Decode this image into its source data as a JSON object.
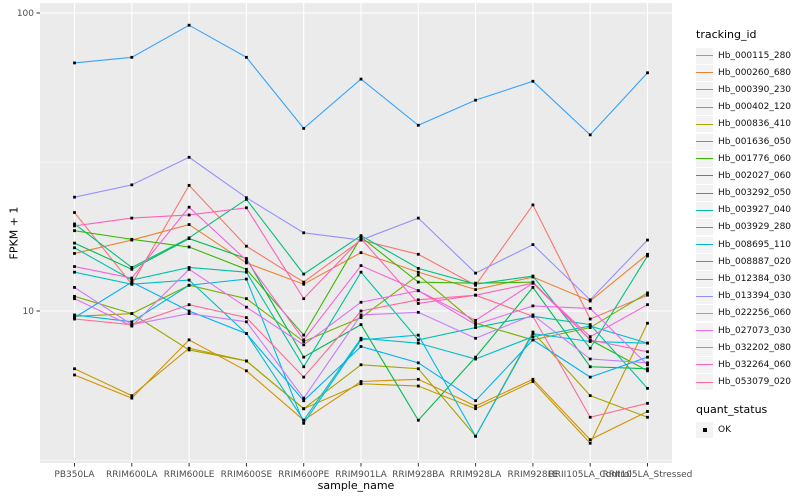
{
  "figure": {
    "background": "#FFFFFF",
    "panel_background": "#EBEBEB",
    "grid_color": "#FFFFFF",
    "tick_color": "#333333",
    "tick_label_color": "#4D4D4D",
    "point_color": "#000000"
  },
  "chart_data": {
    "type": "line",
    "title": "",
    "xlabel": "sample_name",
    "ylabel": "FPKM + 1",
    "y_scale": "log10",
    "y_ticks": [
      100,
      10
    ],
    "y_minor_ticks": [
      31.6,
      3.16
    ],
    "ylim": [
      3.1,
      108
    ],
    "grid": true,
    "legend_position": "right",
    "categories": [
      "PB350LA",
      "RRIM600LA",
      "RRIM600LE",
      "RRIM600SE",
      "RRIM600PE",
      "RRIM901LA",
      "RRIM928BA",
      "RRIM928LA",
      "RRIM928LE",
      "RRII105LA_Control",
      "RRII105LA_Stressed"
    ],
    "legend": {
      "title": "tracking_id"
    },
    "quant_legend": {
      "title": "quant_status",
      "items": [
        {
          "label": "OK",
          "marker": "black-square"
        }
      ]
    },
    "series": [
      {
        "name": "Hb_000115_280",
        "color": "#F8766D",
        "values": [
          21.4,
          12.3,
          26.4,
          16.5,
          12.5,
          17.3,
          15.5,
          12.2,
          22.7,
          9.4,
          11.3
        ]
      },
      {
        "name": "Hb_000260_680",
        "color": "#EA8331",
        "values": [
          15.6,
          17.3,
          19.5,
          14.5,
          12.3,
          15.7,
          13.5,
          11.8,
          13.0,
          10.8,
          15.5
        ]
      },
      {
        "name": "Hb_000390_230",
        "color": "#D89000",
        "values": [
          6.1,
          5.1,
          8.0,
          6.3,
          4.3,
          5.8,
          5.9,
          4.8,
          5.9,
          3.7,
          4.6
        ]
      },
      {
        "name": "Hb_000402_120",
        "color": "#C09B00",
        "values": [
          6.4,
          5.2,
          7.5,
          6.8,
          4.7,
          5.7,
          5.6,
          4.7,
          5.8,
          3.6,
          9.1
        ]
      },
      {
        "name": "Hb_000836_410",
        "color": "#A3A500",
        "values": [
          9.6,
          9.8,
          7.4,
          6.8,
          4.7,
          6.6,
          6.4,
          3.8,
          8.5,
          5.2,
          4.4
        ]
      },
      {
        "name": "Hb_001636_050",
        "color": "#7CAE00",
        "values": [
          11.2,
          9.8,
          12.2,
          11.0,
          7.9,
          9.5,
          13.2,
          9.1,
          8.0,
          8.8,
          11.5
        ]
      },
      {
        "name": "Hb_001776_060",
        "color": "#39B600",
        "values": [
          18.6,
          17.4,
          16.4,
          13.8,
          8.3,
          17.7,
          12.5,
          12.4,
          12.5,
          8.0,
          6.3
        ]
      },
      {
        "name": "Hb_002027_060",
        "color": "#00BB4E",
        "values": [
          16.9,
          13.8,
          17.5,
          15.0,
          7.0,
          9.0,
          4.3,
          7.0,
          12.0,
          6.5,
          6.4
        ]
      },
      {
        "name": "Hb_003292_050",
        "color": "#00BF7D",
        "values": [
          19.6,
          14.0,
          17.6,
          23.7,
          13.3,
          17.9,
          13.9,
          12.3,
          13.1,
          7.5,
          15.3
        ]
      },
      {
        "name": "Hb_003927_040",
        "color": "#00C1A3",
        "values": [
          16.3,
          12.7,
          14.0,
          13.5,
          6.5,
          13.5,
          8.0,
          8.8,
          9.6,
          9.0,
          5.5
        ]
      },
      {
        "name": "Hb_003929_280",
        "color": "#00BFC4",
        "values": [
          13.5,
          12.3,
          12.7,
          8.4,
          4.3,
          8.1,
          7.8,
          6.9,
          8.2,
          8.9,
          7.8
        ]
      },
      {
        "name": "Hb_008695_110",
        "color": "#00BAE0",
        "values": [
          9.7,
          9.2,
          12.2,
          12.8,
          4.2,
          8.0,
          8.3,
          3.8,
          8.4,
          7.9,
          7.8
        ]
      },
      {
        "name": "Hb_008887_020",
        "color": "#00B0F6",
        "values": [
          9.5,
          12.5,
          10.0,
          8.4,
          5.0,
          7.6,
          6.7,
          5.0,
          8.0,
          6.0,
          7.0
        ]
      },
      {
        "name": "Hb_012384_030",
        "color": "#35A2FF",
        "values": [
          68,
          71,
          91,
          71,
          41,
          60,
          42,
          51,
          59,
          39,
          63
        ]
      },
      {
        "name": "Hb_013394_030",
        "color": "#9590FF",
        "values": [
          24.1,
          26.5,
          32.8,
          24.0,
          18.3,
          17.3,
          20.5,
          13.4,
          16.7,
          10.9,
          17.3
        ]
      },
      {
        "name": "Hb_022256_060",
        "color": "#C77CFF",
        "values": [
          12.0,
          9.0,
          9.8,
          9.2,
          5.1,
          9.7,
          9.9,
          8.1,
          9.7,
          6.9,
          6.7
        ]
      },
      {
        "name": "Hb_027073_030",
        "color": "#E76BF3",
        "values": [
          11.0,
          8.9,
          13.8,
          10.3,
          7.7,
          10.7,
          11.7,
          9.0,
          10.4,
          10.2,
          6.6
        ]
      },
      {
        "name": "Hb_032202_080",
        "color": "#FA62DB",
        "values": [
          14.1,
          12.9,
          22.3,
          14.8,
          8.0,
          14.2,
          11.7,
          9.3,
          12.4,
          8.2,
          10.5
        ]
      },
      {
        "name": "Hb_032264_060",
        "color": "#FF62BC",
        "values": [
          19.3,
          20.5,
          21.0,
          22.2,
          11.0,
          17.5,
          10.6,
          11.3,
          12.4,
          8.0,
          7.3
        ]
      },
      {
        "name": "Hb_053079_020",
        "color": "#FF6A98",
        "values": [
          9.4,
          9.0,
          10.5,
          9.5,
          6.0,
          10.0,
          10.9,
          11.3,
          9.6,
          4.4,
          4.9
        ]
      }
    ]
  }
}
